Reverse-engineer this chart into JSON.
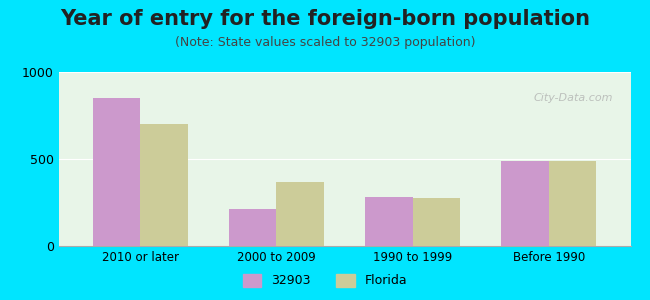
{
  "title": "Year of entry for the foreign-born population",
  "subtitle": "(Note: State values scaled to 32903 population)",
  "categories": [
    "2010 or later",
    "2000 to 2009",
    "1990 to 1999",
    "Before 1990"
  ],
  "values_32903": [
    850,
    210,
    280,
    490
  ],
  "values_florida": [
    700,
    365,
    275,
    490
  ],
  "color_32903": "#cc99cc",
  "color_florida": "#cccc99",
  "ylim": [
    0,
    1000
  ],
  "yticks": [
    0,
    500,
    1000
  ],
  "background_outer": "#00e5ff",
  "background_inner": "#e8f5e8",
  "legend_label_32903": "32903",
  "legend_label_florida": "Florida",
  "bar_width": 0.35,
  "title_fontsize": 15,
  "subtitle_fontsize": 9
}
